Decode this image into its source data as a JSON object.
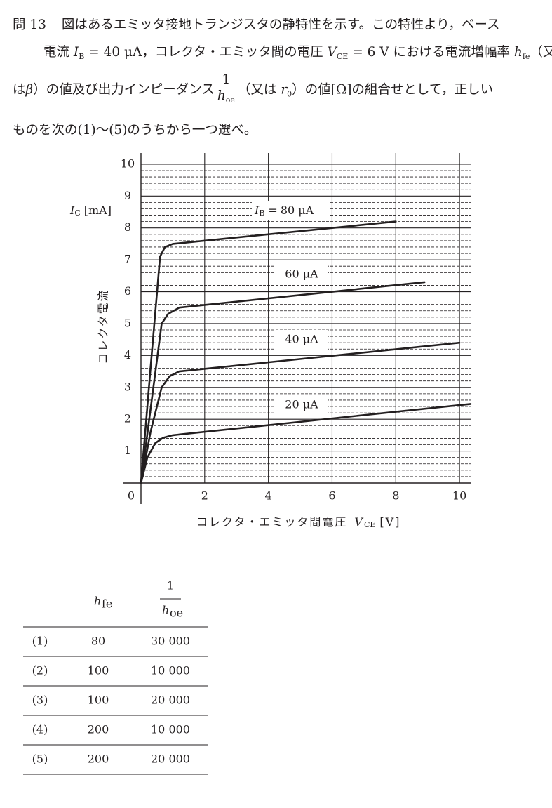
{
  "question": {
    "number": "問 13",
    "lines": [
      [
        "図はあるエミッタ接地トランジスタの静特性を示す。この特性より，ベース"
      ],
      [
        "電流 ",
        "I",
        "B",
        " = 40 μA，コレクタ・エミッタ間の電圧 ",
        "V",
        "CE",
        " = 6 V における電流増幅率 ",
        "h",
        "fe",
        "（又"
      ],
      [
        "は",
        "β",
        "）の値及び出力インピーダンス",
        "1",
        "h",
        "oe",
        "（又は ",
        "r",
        "0",
        "）の値[Ω]の組合せとして，正しい"
      ],
      [
        "ものを次の(1)～(5)のうちから一つ選べ。"
      ]
    ]
  },
  "chart_data": {
    "type": "line",
    "x_label": {
      "text": "コレクタ・エミッタ間電圧",
      "symbol": "V",
      "subscript": "CE",
      "unit": "[V]"
    },
    "y_label": {
      "text": "コレクタ電流",
      "symbol": "I",
      "subscript": "C",
      "unit": "[mA]"
    },
    "xlim": [
      0,
      10.35
    ],
    "ylim": [
      0,
      10.35
    ],
    "xticks": [
      0,
      2,
      4,
      6,
      8,
      10
    ],
    "yticks": [
      0,
      1,
      2,
      3,
      4,
      5,
      6,
      7,
      8,
      9,
      10
    ],
    "yminorticks": [
      0.2,
      0.4,
      0.6,
      0.8,
      1.2,
      1.4,
      1.6,
      1.8,
      2.2,
      2.4,
      2.6,
      2.8,
      3.2,
      3.4,
      3.6,
      3.8,
      4.2,
      4.4,
      4.6,
      4.8,
      5.2,
      5.4,
      5.6,
      5.8,
      6.2,
      6.4,
      6.6,
      6.8,
      7.2,
      7.4,
      7.6,
      7.8,
      8.2,
      8.4,
      8.6,
      8.8,
      9.2,
      9.4,
      9.6,
      9.8
    ],
    "grid": true,
    "series_label_prefix": {
      "symbol": "I",
      "subscript": "B",
      "sign": "="
    },
    "series": [
      {
        "name": "80 μA",
        "color": "#231f20",
        "x": [
          0,
          0.3,
          0.6,
          0.75,
          1.0,
          8.0
        ],
        "values": [
          0,
          3.6,
          7.1,
          7.4,
          7.5,
          8.2
        ]
      },
      {
        "name": "60 μA",
        "color": "#231f20",
        "x": [
          0,
          0.35,
          0.65,
          0.85,
          1.2,
          8.9
        ],
        "values": [
          0,
          2.7,
          5.0,
          5.3,
          5.5,
          6.3
        ]
      },
      {
        "name": "40 μA",
        "color": "#231f20",
        "x": [
          0,
          0.3,
          0.65,
          0.9,
          1.2,
          10.0
        ],
        "values": [
          0,
          1.6,
          3.0,
          3.35,
          3.5,
          4.4
        ]
      },
      {
        "name": "20 μA",
        "color": "#231f20",
        "x": [
          0,
          0.2,
          0.45,
          0.7,
          1.0,
          10.35
        ],
        "values": [
          0,
          0.8,
          1.25,
          1.42,
          1.5,
          2.48
        ]
      }
    ]
  },
  "table": {
    "header": {
      "col2": {
        "symbol": "h",
        "subscript": "fe"
      },
      "col3": {
        "numerator": "1",
        "symbol": "h",
        "subscript": "oe"
      }
    },
    "rows": [
      [
        "(1)",
        "80",
        "30 000"
      ],
      [
        "(2)",
        "100",
        "10 000"
      ],
      [
        "(3)",
        "100",
        "20 000"
      ],
      [
        "(4)",
        "200",
        "10 000"
      ],
      [
        "(5)",
        "200",
        "20 000"
      ]
    ]
  }
}
